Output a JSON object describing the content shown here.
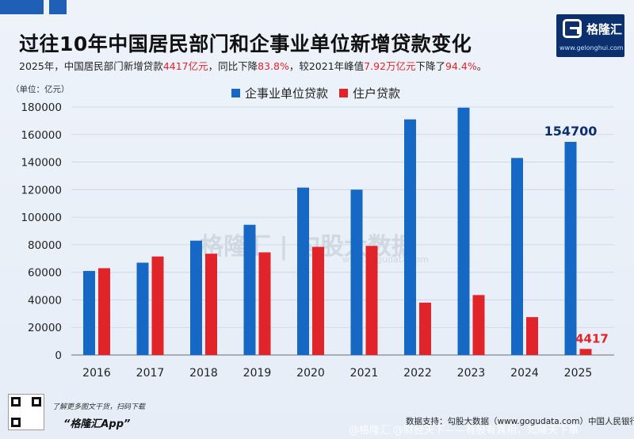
{
  "header": {
    "title": "过往10年中国居民部门和企事业单位新增贷款变化",
    "subtitle_parts": [
      "2025年，中国居民部门新增贷款",
      "4417亿元",
      "，同比下降",
      "83.8%",
      "，较2021年峰值",
      "7.92万亿元",
      "下降了",
      "94.4%",
      "。"
    ]
  },
  "logo": {
    "name": "格隆汇",
    "url": "www.gelonghui.com"
  },
  "watermark": {
    "brand": "格隆汇",
    "partner": "勾股大数据",
    "url": "www.gogudata.com"
  },
  "footer": {
    "note": "了解更多图文干货，扫码下载",
    "app": "“格隆汇App”",
    "source": "数据支持：勾股大数据（www.gogudata.com）中国人民银行",
    "bottom_strip": "@格隆汇 @财经天下——有股有真相，知晓天下事"
  },
  "colors": {
    "corporate": "#1668c5",
    "household": "#e0242a",
    "title_blue": "#0c2f6e"
  },
  "chart_data": {
    "type": "bar",
    "unit_label": "（单位：亿元）",
    "categories": [
      "2016",
      "2017",
      "2018",
      "2019",
      "2020",
      "2021",
      "2022",
      "2023",
      "2024",
      "2025"
    ],
    "series": [
      {
        "name": "企事业单位贷款",
        "values": [
          61000,
          67000,
          83000,
          94500,
          121500,
          120000,
          171000,
          179500,
          143000,
          154700
        ]
      },
      {
        "name": "住户贷款",
        "values": [
          63000,
          71500,
          73500,
          74500,
          78500,
          79200,
          38000,
          43500,
          27500,
          4417
        ]
      }
    ],
    "yticks": [
      "0",
      "20000",
      "40000",
      "60000",
      "80000",
      "100000",
      "120000",
      "140000",
      "160000",
      "180000"
    ],
    "ylim": [
      0,
      180000
    ],
    "annotations": [
      {
        "series": "企事业单位贷款",
        "category": "2025",
        "text": "154700"
      },
      {
        "series": "住户贷款",
        "category": "2025",
        "text": "4417"
      }
    ],
    "legend_position": "top-center",
    "grid": "horizontal"
  }
}
